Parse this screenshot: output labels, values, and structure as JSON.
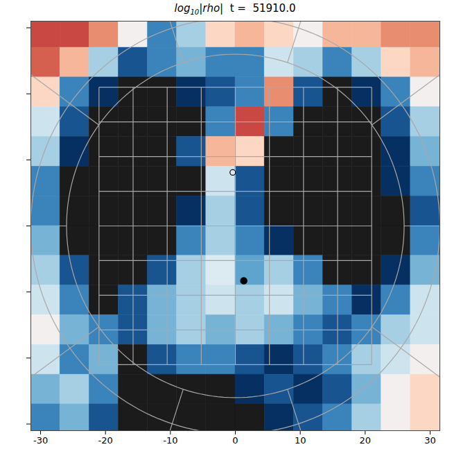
{
  "chart_data": {
    "type": "heatmap",
    "title": "log10|rho|  t =  51910.0",
    "xlim": [
      -31.5,
      31.5
    ],
    "ylim": [
      -31,
      31
    ],
    "xticks": [
      -30,
      -20,
      -10,
      0,
      10,
      20,
      30
    ],
    "yticks": [
      -30,
      -20,
      -10,
      0,
      10,
      20,
      30
    ],
    "tick_labels": "x",
    "grid": false,
    "zlim": [
      -4,
      -1
    ],
    "x": [
      -29.25,
      -24.75,
      -20.25,
      -15.75,
      -11.25,
      -6.75,
      -2.25,
      2.25,
      6.75,
      11.25,
      15.75,
      20.25,
      24.75,
      29.25
    ],
    "y": [
      29.25,
      24.75,
      20.25,
      15.75,
      11.25,
      6.75,
      2.25,
      -2.25,
      -6.75,
      -11.25,
      -15.75,
      -20.25,
      -24.75,
      -29.25
    ],
    "cells": [
      [
        -1.5,
        -1.5,
        -1.8,
        -2.5,
        -3.5,
        -3,
        -2.2,
        -2,
        -2.2,
        -2.5,
        -2,
        -2,
        -1.8,
        -1.8
      ],
      [
        -1.6,
        -2,
        -3,
        -3.8,
        -3.5,
        -3.2,
        -3.5,
        -3.5,
        -2.8,
        -3,
        -3.5,
        -3,
        -2.2,
        -2
      ],
      [
        -2.2,
        -3.5,
        -4,
        -5,
        -5,
        -4,
        -3.8,
        -3.5,
        -1.8,
        -3.8,
        -5,
        -4,
        -3.5,
        -2.5
      ],
      [
        -2.8,
        -3.8,
        -5,
        -5,
        -5,
        -4.5,
        -3.5,
        -1.5,
        -3.5,
        -5,
        -5,
        -5,
        -3.8,
        -3
      ],
      [
        -3,
        -4,
        -5,
        -5,
        -5,
        -3.8,
        -2,
        -2.2,
        -5,
        -5,
        -5,
        -5,
        -4,
        -3.2
      ],
      [
        -3.5,
        -4.5,
        -5,
        -5,
        -5,
        -5,
        -2.8,
        -3.8,
        -5,
        -5,
        -5,
        -5,
        -4,
        -3.5
      ],
      [
        -3.5,
        -5,
        -5,
        -5,
        -5,
        -4,
        -3,
        -3.8,
        -5,
        -5,
        -5,
        -5,
        -4.5,
        -3.8
      ],
      [
        -3.2,
        -5,
        -5,
        -5,
        -5,
        -3.5,
        -3,
        -3.5,
        -4,
        -5,
        -5,
        -5,
        -4.5,
        -3.5
      ],
      [
        -3,
        -3.8,
        -5,
        -5,
        -3.8,
        -3,
        -2.7,
        -3.3,
        -3,
        -3.5,
        -4.5,
        -5,
        -4,
        -3.2
      ],
      [
        -2.8,
        -3.5,
        -4.5,
        -3.8,
        -3.2,
        -3,
        -2.8,
        -3,
        -2.8,
        -3.2,
        -3.5,
        -4,
        -3.5,
        -2.8
      ],
      [
        -2.5,
        -3.2,
        -3.5,
        -3.8,
        -3.2,
        -3,
        -3.2,
        -3,
        -3.2,
        -3.5,
        -3.8,
        -3.5,
        -3,
        -2.8
      ],
      [
        -2.8,
        -3.5,
        -3.2,
        -5,
        -3.8,
        -3.5,
        -3.5,
        -3.8,
        -4,
        -3.8,
        -3.5,
        -3,
        -2.8,
        -2.5
      ],
      [
        -3.2,
        -3,
        -3.5,
        -5,
        -5,
        -5,
        -4.5,
        -4,
        -3.8,
        -4,
        -3.8,
        -3.2,
        -2.5,
        -2.2
      ],
      [
        -3.5,
        -3.2,
        -3.8,
        -5,
        -5,
        -5,
        -5,
        -5,
        -4,
        -3.8,
        -3.5,
        -3,
        -2.5,
        -2.2
      ]
    ],
    "mesh": {
      "circles": [
        26,
        31.5
      ],
      "grid_lines": [
        -21,
        -15.75,
        -10.5,
        -5.25,
        0,
        5.25,
        10.5,
        15.75,
        21
      ],
      "spoke_angles": [
        0,
        36,
        72,
        108,
        144,
        180,
        216,
        252,
        288,
        324
      ]
    },
    "points": [
      {
        "x": 1.3,
        "y": -8.3,
        "marker": "filled"
      },
      {
        "x": -0.4,
        "y": 8.1,
        "marker": "open"
      }
    ]
  }
}
